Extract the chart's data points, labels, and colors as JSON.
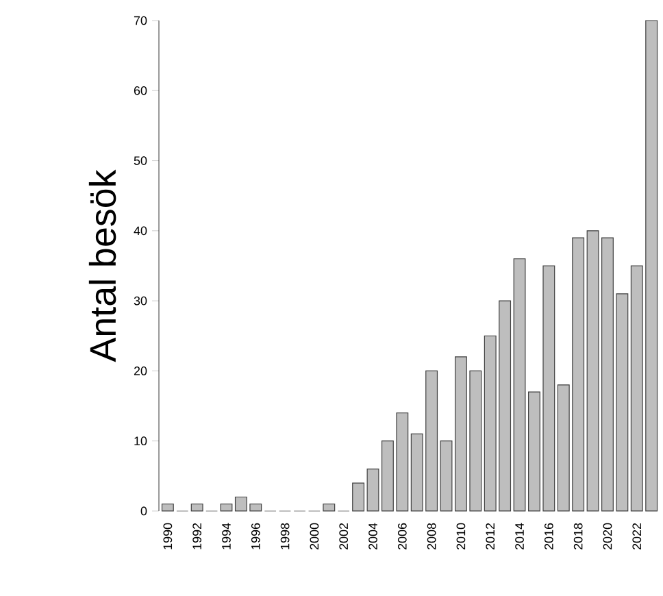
{
  "chart_data": {
    "type": "bar",
    "ylabel": "Antal besök",
    "categories": [
      "1990",
      null,
      "1992",
      null,
      "1994",
      null,
      "1996",
      null,
      "1998",
      null,
      "2000",
      null,
      "2002",
      null,
      "2004",
      null,
      "2006",
      null,
      "2008",
      null,
      "2010",
      null,
      "2012",
      null,
      "2014",
      null,
      "2016",
      null,
      "2018",
      null,
      "2020",
      null,
      "2022",
      null
    ],
    "values": [
      1,
      0,
      1,
      0,
      1,
      2,
      1,
      0,
      0,
      0,
      0,
      1,
      0,
      4,
      6,
      10,
      14,
      11,
      20,
      10,
      22,
      20,
      25,
      30,
      36,
      17,
      35,
      18,
      39,
      40,
      39,
      31,
      35,
      70
    ],
    "color": "#bebebe",
    "ylim": [
      0,
      70
    ],
    "yticks": [
      0,
      10,
      20,
      30,
      40,
      50,
      60,
      70
    ],
    "grid": false
  }
}
